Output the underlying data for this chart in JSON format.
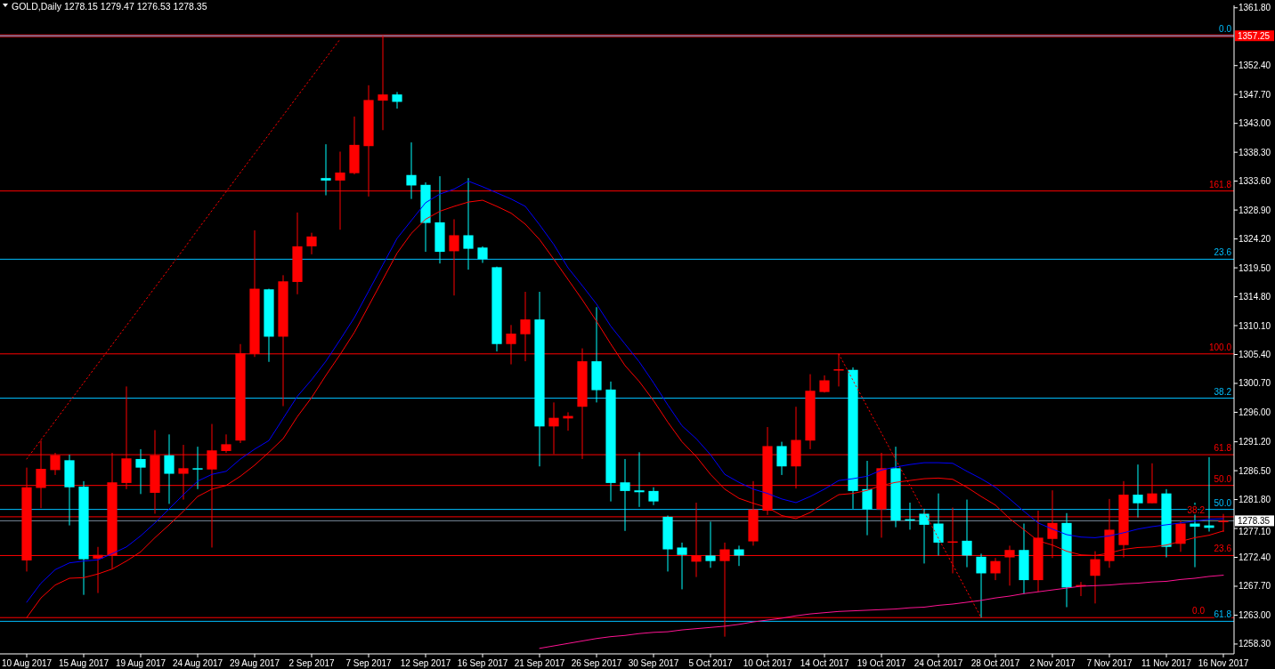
{
  "chart_data": {
    "type": "candlestick",
    "title": "GOLD,Daily  1278.15 1279.47 1276.53 1278.35",
    "categories": [
      "10 Aug 2017",
      null,
      null,
      null,
      "15 Aug 2017",
      null,
      null,
      null,
      "19 Aug 2017",
      null,
      null,
      null,
      "24 Aug 2017",
      null,
      null,
      null,
      "29 Aug 2017",
      null,
      null,
      null,
      "2 Sep 2017",
      null,
      null,
      null,
      "7 Sep 2017",
      null,
      null,
      null,
      "12 Sep 2017",
      null,
      null,
      null,
      "16 Sep 2017",
      null,
      null,
      null,
      "21 Sep 2017",
      null,
      null,
      null,
      "26 Sep 2017",
      null,
      null,
      null,
      "30 Sep 2017",
      null,
      null,
      null,
      "5 Oct 2017",
      null,
      null,
      null,
      "10 Oct 2017",
      null,
      null,
      null,
      "14 Oct 2017",
      null,
      null,
      null,
      "19 Oct 2017",
      null,
      null,
      null,
      "24 Oct 2017",
      null,
      null,
      null,
      "28 Oct 2017",
      null,
      null,
      null,
      "2 Nov 2017",
      null,
      null,
      null,
      "7 Nov 2017",
      null,
      null,
      null,
      "11 Nov 2017",
      null,
      null,
      null,
      "16 Nov 2017"
    ],
    "ohlc": [
      [
        1271.9,
        1287.0,
        1270.1,
        1283.8
      ],
      [
        1283.7,
        1291.4,
        1280.4,
        1286.8
      ],
      [
        1286.6,
        1289.4,
        1285.8,
        1289.0
      ],
      [
        1288.2,
        1289.1,
        1277.6,
        1283.8
      ],
      [
        1283.9,
        1284.8,
        1266.3,
        1272.1
      ],
      [
        1272.2,
        1274.1,
        1266.6,
        1272.8
      ],
      [
        1272.7,
        1289.4,
        1270.6,
        1284.6
      ],
      [
        1284.5,
        1300.2,
        1283.5,
        1288.5
      ],
      [
        1288.4,
        1290.0,
        1282.7,
        1287.0
      ],
      [
        1282.9,
        1293.1,
        1279.5,
        1289.0
      ],
      [
        1289.0,
        1292.4,
        1281.1,
        1286.0
      ],
      [
        1286.0,
        1290.7,
        1281.8,
        1286.9
      ],
      [
        1286.9,
        1290.4,
        1283.5,
        1286.7
      ],
      [
        1286.7,
        1294.1,
        1274.0,
        1289.8
      ],
      [
        1289.7,
        1292.4,
        1289.4,
        1290.8
      ],
      [
        1291.4,
        1307.1,
        1291.0,
        1305.6
      ],
      [
        1305.5,
        1325.6,
        1305.0,
        1316.1
      ],
      [
        1316.0,
        1316.1,
        1304.2,
        1308.3
      ],
      [
        1308.3,
        1318.3,
        1297.0,
        1317.3
      ],
      [
        1317.2,
        1328.5,
        1315.2,
        1323.0
      ],
      [
        1323.0,
        1325.2,
        1321.7,
        1324.6
      ],
      [
        1334.1,
        1339.6,
        1331.3,
        1333.7
      ],
      [
        1333.7,
        1338.4,
        1325.7,
        1335.0
      ],
      [
        1334.9,
        1344.1,
        1334.7,
        1339.5
      ],
      [
        1339.3,
        1349.2,
        1331.1,
        1346.8
      ],
      [
        1346.7,
        1357.25,
        1341.9,
        1347.7
      ],
      [
        1347.7,
        1348.1,
        1345.4,
        1346.5
      ],
      [
        1334.6,
        1339.9,
        1330.7,
        1332.9
      ],
      [
        1333.0,
        1333.4,
        1322.1,
        1326.8
      ],
      [
        1326.9,
        1334.4,
        1320.2,
        1322.1
      ],
      [
        1322.2,
        1327.4,
        1315.0,
        1324.8
      ],
      [
        1324.8,
        1334.1,
        1319.2,
        1322.6
      ],
      [
        1322.8,
        1323.0,
        1320.3,
        1320.9
      ],
      [
        1319.6,
        1319.7,
        1305.9,
        1307.1
      ],
      [
        1307.1,
        1310.2,
        1303.8,
        1308.8
      ],
      [
        1308.7,
        1315.6,
        1304.3,
        1311.1
      ],
      [
        1311.1,
        1315.6,
        1287.2,
        1293.7
      ],
      [
        1293.7,
        1297.6,
        1289.2,
        1295.1
      ],
      [
        1295.0,
        1296.0,
        1293.0,
        1295.4
      ],
      [
        1296.9,
        1306.4,
        1288.4,
        1304.3
      ],
      [
        1304.3,
        1313.1,
        1297.6,
        1299.6
      ],
      [
        1299.7,
        1301.0,
        1281.5,
        1284.5
      ],
      [
        1284.6,
        1288.4,
        1276.7,
        1283.2
      ],
      [
        1283.3,
        1289.5,
        1280.6,
        1283.0
      ],
      [
        1283.2,
        1283.8,
        1280.9,
        1281.5
      ],
      [
        1279.0,
        1279.2,
        1270.1,
        1273.7
      ],
      [
        1274.0,
        1274.8,
        1267.2,
        1272.8
      ],
      [
        1271.7,
        1281.3,
        1269.2,
        1272.7
      ],
      [
        1272.7,
        1278.2,
        1270.7,
        1271.8
      ],
      [
        1271.8,
        1274.8,
        1259.5,
        1273.7
      ],
      [
        1273.7,
        1274.3,
        1271.0,
        1272.7
      ],
      [
        1275.0,
        1284.8,
        1274.3,
        1280.2
      ],
      [
        1280.0,
        1293.6,
        1279.3,
        1290.5
      ],
      [
        1290.5,
        1291.2,
        1285.8,
        1287.2
      ],
      [
        1287.2,
        1296.9,
        1283.6,
        1291.5
      ],
      [
        1291.4,
        1302.2,
        1290.0,
        1299.5
      ],
      [
        1299.3,
        1302.0,
        1299.2,
        1301.2
      ],
      [
        1302.9,
        1305.5,
        1300.2,
        1303.0
      ],
      [
        1302.9,
        1303.3,
        1280.3,
        1283.2
      ],
      [
        1283.5,
        1288.1,
        1276.0,
        1280.2
      ],
      [
        1280.2,
        1289.4,
        1275.6,
        1286.9
      ],
      [
        1286.9,
        1290.4,
        1277.3,
        1278.4
      ],
      [
        1278.6,
        1281.3,
        1276.9,
        1278.5
      ],
      [
        1279.5,
        1280.3,
        1271.4,
        1277.7
      ],
      [
        1277.9,
        1282.8,
        1272.7,
        1274.8
      ],
      [
        1274.9,
        1280.5,
        1269.8,
        1275.0
      ],
      [
        1275.1,
        1281.8,
        1270.8,
        1272.7
      ],
      [
        1272.5,
        1273.0,
        1262.6,
        1269.8
      ],
      [
        1269.8,
        1272.3,
        1268.7,
        1271.8
      ],
      [
        1272.4,
        1274.3,
        1267.8,
        1273.6
      ],
      [
        1273.6,
        1277.9,
        1266.5,
        1268.7
      ],
      [
        1268.7,
        1280.0,
        1266.8,
        1275.6
      ],
      [
        1275.4,
        1283.3,
        1272.3,
        1278.0
      ],
      [
        1278.0,
        1279.6,
        1264.3,
        1267.5
      ],
      [
        1267.7,
        1268.4,
        1266.1,
        1267.9
      ],
      [
        1269.4,
        1273.4,
        1264.9,
        1272.1
      ],
      [
        1271.8,
        1281.9,
        1270.7,
        1276.9
      ],
      [
        1274.4,
        1284.8,
        1272.4,
        1282.6
      ],
      [
        1282.6,
        1287.5,
        1278.9,
        1281.2
      ],
      [
        1281.2,
        1287.7,
        1281.2,
        1282.8
      ],
      [
        1282.8,
        1283.5,
        1272.4,
        1274.1
      ],
      [
        1274.6,
        1278.4,
        1273.3,
        1277.9
      ],
      [
        1277.9,
        1281.3,
        1270.8,
        1277.4
      ],
      [
        1277.6,
        1288.7,
        1276.6,
        1277.2
      ],
      [
        1278.15,
        1279.47,
        1276.53,
        1278.35
      ]
    ],
    "colors": [
      "#ff0000",
      "#ff0000",
      "#ff0000",
      "#00ffff",
      "#00ffff",
      "#ff0000",
      "#ff0000",
      "#ff0000",
      "#00ffff",
      "#ff0000",
      "#00ffff",
      "#ff0000",
      "#00ffff",
      "#ff0000",
      "#ff0000",
      "#ff0000",
      "#ff0000",
      "#00ffff",
      "#ff0000",
      "#ff0000",
      "#ff0000",
      "#00ffff",
      "#ff0000",
      "#ff0000",
      "#ff0000",
      "#ff0000",
      "#00ffff",
      "#00ffff",
      "#00ffff",
      "#00ffff",
      "#ff0000",
      "#00ffff",
      "#00ffff",
      "#00ffff",
      "#ff0000",
      "#ff0000",
      "#00ffff",
      "#ff0000",
      "#ff0000",
      "#ff0000",
      "#00ffff",
      "#00ffff",
      "#00ffff",
      "#00ffff",
      "#00ffff",
      "#00ffff",
      "#00ffff",
      "#ff0000",
      "#00ffff",
      "#ff0000",
      "#00ffff",
      "#ff0000",
      "#ff0000",
      "#00ffff",
      "#ff0000",
      "#ff0000",
      "#ff0000",
      "#ff0000",
      "#00ffff",
      "#00ffff",
      "#ff0000",
      "#00ffff",
      "#00ffff",
      "#00ffff",
      "#00ffff",
      "#ff0000",
      "#00ffff",
      "#00ffff",
      "#ff0000",
      "#ff0000",
      "#00ffff",
      "#ff0000",
      "#ff0000",
      "#00ffff",
      "#ff0000",
      "#ff0000",
      "#ff0000",
      "#ff0000",
      "#00ffff",
      "#ff0000",
      "#00ffff",
      "#ff0000",
      "#00ffff",
      "#00ffff",
      "#ff0000"
    ],
    "series": [
      {
        "type": "line",
        "color": "#0000ff",
        "values": [
          1265.1,
          1268.2,
          1270.4,
          1271.5,
          1271.8,
          1272.0,
          1273.0,
          1274.1,
          1275.9,
          1278.0,
          1280.3,
          1282.6,
          1284.8,
          1285.9,
          1286.4,
          1288.4,
          1290.0,
          1291.4,
          1295.0,
          1298.6,
          1301.3,
          1304.3,
          1307.8,
          1311.4,
          1315.7,
          1320.0,
          1324.3,
          1327.2,
          1330.1,
          1331.5,
          1332.3,
          1333.6,
          1332.7,
          1331.7,
          1330.7,
          1329.5,
          1326.5,
          1323.3,
          1319.5,
          1316.6,
          1313.6,
          1310.0,
          1307.1,
          1304.2,
          1300.8,
          1297.2,
          1293.8,
          1291.7,
          1289.1,
          1285.9,
          1284.6,
          1283.5,
          1282.8,
          1281.9,
          1281.3,
          1282.3,
          1283.5,
          1284.9,
          1285.2,
          1285.6,
          1286.6,
          1287.1,
          1287.5,
          1287.8,
          1287.8,
          1287.7,
          1286.4,
          1285.2,
          1283.8,
          1281.9,
          1279.9,
          1278.0,
          1277.0,
          1276.1,
          1275.7,
          1275.6,
          1275.9,
          1276.4,
          1277.0,
          1277.4,
          1277.7,
          1278.0,
          1278.3,
          1278.6,
          1278.7
        ]
      },
      {
        "type": "line",
        "color": "#ff0000",
        "values": [
          1262.6,
          1265.8,
          1267.9,
          1269.0,
          1269.1,
          1269.7,
          1270.5,
          1271.8,
          1273.3,
          1275.6,
          1277.7,
          1279.9,
          1282.3,
          1283.5,
          1284.1,
          1285.6,
          1287.4,
          1289.5,
          1291.7,
          1295.3,
          1298.4,
          1302.0,
          1305.4,
          1309.0,
          1313.3,
          1317.6,
          1321.9,
          1325.1,
          1327.4,
          1328.7,
          1329.5,
          1330.2,
          1330.5,
          1329.5,
          1328.4,
          1326.6,
          1324.1,
          1320.9,
          1317.6,
          1314.3,
          1310.8,
          1307.1,
          1303.6,
          1301.0,
          1297.9,
          1294.4,
          1291.2,
          1288.8,
          1285.9,
          1283.5,
          1282.0,
          1281.2,
          1280.5,
          1279.2,
          1278.7,
          1279.7,
          1281.2,
          1282.6,
          1282.8,
          1283.3,
          1284.1,
          1284.6,
          1284.9,
          1285.2,
          1285.3,
          1285.1,
          1283.8,
          1282.3,
          1280.9,
          1278.7,
          1276.9,
          1275.1,
          1274.4,
          1273.4,
          1272.8,
          1272.7,
          1273.1,
          1273.7,
          1274.0,
          1274.1,
          1274.4,
          1275.0,
          1275.6,
          1276.0,
          1276.7
        ]
      },
      {
        "type": "line",
        "color": "#ff1493",
        "values": [
          null,
          null,
          null,
          null,
          null,
          null,
          null,
          null,
          null,
          null,
          null,
          null,
          null,
          null,
          null,
          null,
          null,
          null,
          null,
          null,
          null,
          null,
          null,
          null,
          null,
          null,
          null,
          null,
          null,
          null,
          null,
          null,
          null,
          null,
          null,
          null,
          1257.6,
          1258.0,
          1258.4,
          1258.8,
          1259.2,
          1259.5,
          1259.7,
          1260.0,
          1260.2,
          1260.3,
          1260.6,
          1260.8,
          1261.0,
          1261.2,
          1261.5,
          1261.9,
          1262.2,
          1262.5,
          1262.9,
          1263.2,
          1263.4,
          1263.6,
          1263.7,
          1263.8,
          1263.9,
          1264.0,
          1264.2,
          1264.3,
          1264.6,
          1264.8,
          1265.1,
          1265.4,
          1265.8,
          1266.1,
          1266.5,
          1266.8,
          1267.1,
          1267.4,
          1267.7,
          1267.8,
          1267.9,
          1268.1,
          1268.2,
          1268.4,
          1268.5,
          1268.8,
          1269.0,
          1269.3,
          1269.5
        ]
      },
      {
        "type": "line",
        "color": "#ff0000",
        "line_style": "dotted",
        "values": [
          1288.4,
          1291.5,
          1294.6,
          1297.7,
          1300.8,
          1303.9,
          1307.0,
          1310.1,
          1313.2,
          1316.3,
          1319.4,
          1322.5,
          1325.7,
          1328.8,
          1331.9,
          1335.0,
          1338.1,
          1341.2,
          1344.3,
          1347.4,
          1350.5,
          1353.6,
          1356.7,
          null,
          null,
          null,
          null,
          null,
          null,
          null,
          null,
          null,
          null,
          null,
          null,
          null,
          null,
          null,
          null,
          null,
          null,
          null,
          null,
          null,
          null,
          null,
          null,
          null,
          null,
          null,
          null,
          null,
          null,
          null,
          null,
          null,
          null,
          null,
          null,
          null,
          null,
          null,
          null,
          null,
          null,
          null,
          null,
          null,
          null,
          null,
          null,
          null,
          null,
          null,
          null,
          null,
          null,
          null,
          null,
          null,
          null,
          null,
          null,
          null,
          null
        ]
      },
      {
        "type": "line",
        "color": "#ff0000",
        "line_style": "dotted",
        "values": [
          null,
          null,
          null,
          null,
          null,
          null,
          null,
          null,
          null,
          null,
          null,
          null,
          null,
          null,
          null,
          null,
          null,
          null,
          null,
          null,
          null,
          null,
          null,
          null,
          null,
          null,
          null,
          null,
          null,
          null,
          null,
          null,
          null,
          null,
          null,
          null,
          null,
          null,
          null,
          null,
          null,
          null,
          null,
          null,
          null,
          null,
          null,
          null,
          null,
          null,
          null,
          null,
          null,
          null,
          null,
          null,
          null,
          1305.5,
          1301.2,
          1296.9,
          1292.6,
          1288.3,
          1284.1,
          1279.8,
          1275.5,
          1271.2,
          1266.9,
          1262.6,
          null,
          null,
          null,
          null,
          null,
          null,
          null,
          null,
          null,
          null,
          null,
          null,
          null,
          null,
          null,
          null,
          null
        ]
      }
    ],
    "ylim": [
      1256.7,
      1362.2
    ],
    "yticks": [
      {
        "value": 1258.3,
        "label": "1258.30"
      },
      {
        "value": 1263,
        "label": "1263.00"
      },
      {
        "value": 1267.7,
        "label": "1267.70"
      },
      {
        "value": 1272.4,
        "label": "1272.40"
      },
      {
        "value": 1277.1,
        "label": "1277.10"
      },
      {
        "value": 1278.35,
        "label": "1278.35"
      },
      {
        "value": 1281.8,
        "label": "1281.80"
      },
      {
        "value": 1286.5,
        "label": "1286.50"
      },
      {
        "value": 1291.2,
        "label": "1291.20"
      },
      {
        "value": 1296,
        "label": "1296.00"
      },
      {
        "value": 1300.7,
        "label": "1300.70"
      },
      {
        "value": 1305.4,
        "label": "1305.40"
      },
      {
        "value": 1310.1,
        "label": "1310.10"
      },
      {
        "value": 1314.8,
        "label": "1314.80"
      },
      {
        "value": 1319.5,
        "label": "1319.50"
      },
      {
        "value": 1324.2,
        "label": "1324.20"
      },
      {
        "value": 1328.9,
        "label": "1328.90"
      },
      {
        "value": 1333.6,
        "label": "1333.60"
      },
      {
        "value": 1338.3,
        "label": "1338.30"
      },
      {
        "value": 1343,
        "label": "1343.00"
      },
      {
        "value": 1347.7,
        "label": "1347.70"
      },
      {
        "value": 1352.4,
        "label": "1352.40"
      },
      {
        "value": 1357.25,
        "label": "1357.25"
      },
      {
        "value": 1361.8,
        "label": "1361.80"
      }
    ],
    "ref_lines": [
      {
        "axis": "y",
        "value": 1357.25,
        "color": "#ff0000"
      },
      {
        "axis": "y",
        "value": 1278.35,
        "color": "#778899"
      },
      {
        "axis": "y",
        "value": 1357.25,
        "color": "#00bfff"
      },
      {
        "axis": "y",
        "value": 1320.9,
        "color": "#00bfff"
      },
      {
        "axis": "y",
        "value": 1298.3,
        "color": "#00bfff"
      },
      {
        "axis": "y",
        "value": 1280.2,
        "color": "#00bfff"
      },
      {
        "axis": "y",
        "value": 1262.0,
        "color": "#00bfff"
      },
      {
        "axis": "y",
        "value": 1332.0,
        "color": "#ff0000"
      },
      {
        "axis": "y",
        "value": 1305.5,
        "color": "#ff0000"
      },
      {
        "axis": "y",
        "value": 1289.1,
        "color": "#ff0000"
      },
      {
        "axis": "y",
        "value": 1284.1,
        "color": "#ff0000"
      },
      {
        "axis": "y",
        "value": 1279.0,
        "color": "#ff0000"
      },
      {
        "axis": "y",
        "value": 1272.7,
        "color": "#ff0000"
      },
      {
        "axis": "y",
        "value": 1262.6,
        "color": "#ff0000"
      }
    ],
    "annotations": [
      {
        "text": "0.0",
        "y": 1357.25
      },
      {
        "text": "23.6",
        "y": 1320.9
      },
      {
        "text": "38.2",
        "y": 1298.3
      },
      {
        "text": "50.0",
        "y": 1280.2
      },
      {
        "text": "61.8",
        "y": 1262.0
      },
      {
        "text": "161.8",
        "y": 1332.0
      },
      {
        "text": "100.0",
        "y": 1305.5
      },
      {
        "text": "61.8",
        "y": 1289.1
      },
      {
        "text": "50.0",
        "y": 1284.1
      },
      {
        "text": "38.2",
        "y": 1279.0
      },
      {
        "text": "23.6",
        "y": 1272.7
      },
      {
        "text": "0.0",
        "y": 1262.6
      }
    ]
  }
}
